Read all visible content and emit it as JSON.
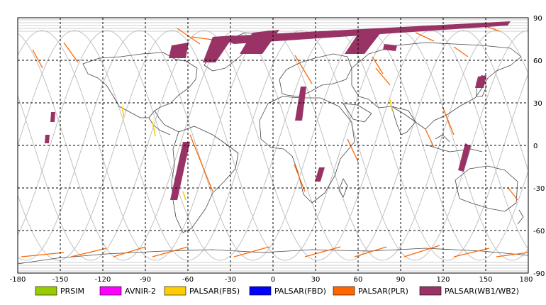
{
  "map": {
    "projection": "equirectangular",
    "lon_range": [
      -180,
      180
    ],
    "lat_range": [
      -90,
      90
    ],
    "grid": "dashed black every 30 degrees",
    "x_ticks": [
      "-180",
      "-150",
      "-120",
      "-90",
      "-60",
      "-30",
      "0",
      "30",
      "60",
      "90",
      "120",
      "150",
      "180"
    ],
    "y_ticks": [
      "90",
      "60",
      "30",
      "0",
      "-30",
      "-60",
      "-90"
    ],
    "colors": {
      "frame": "#000000",
      "grid": "#000000",
      "coast": "#444444",
      "orbit": "#bfbfbf",
      "prsim": "#99cc00",
      "avnir2": "#ff00ff",
      "palsar_fbs": "#ffcc00",
      "palsar_fbd": "#0000ff",
      "palsar_plr": "#ff6600",
      "palsar_wb": "#993366"
    }
  },
  "legend": {
    "items": [
      {
        "label": "PRSIM",
        "color": "#99cc00"
      },
      {
        "label": "AVNIR-2",
        "color": "#ff00ff"
      },
      {
        "label": "PALSAR(FBS)",
        "color": "#ffcc00"
      },
      {
        "label": "PALSAR(FBD)",
        "color": "#0000ff"
      },
      {
        "label": "PALSAR(PLR)",
        "color": "#ff6600"
      },
      {
        "label": "PALSAR(WB1/WB2)",
        "color": "#993366"
      }
    ]
  }
}
